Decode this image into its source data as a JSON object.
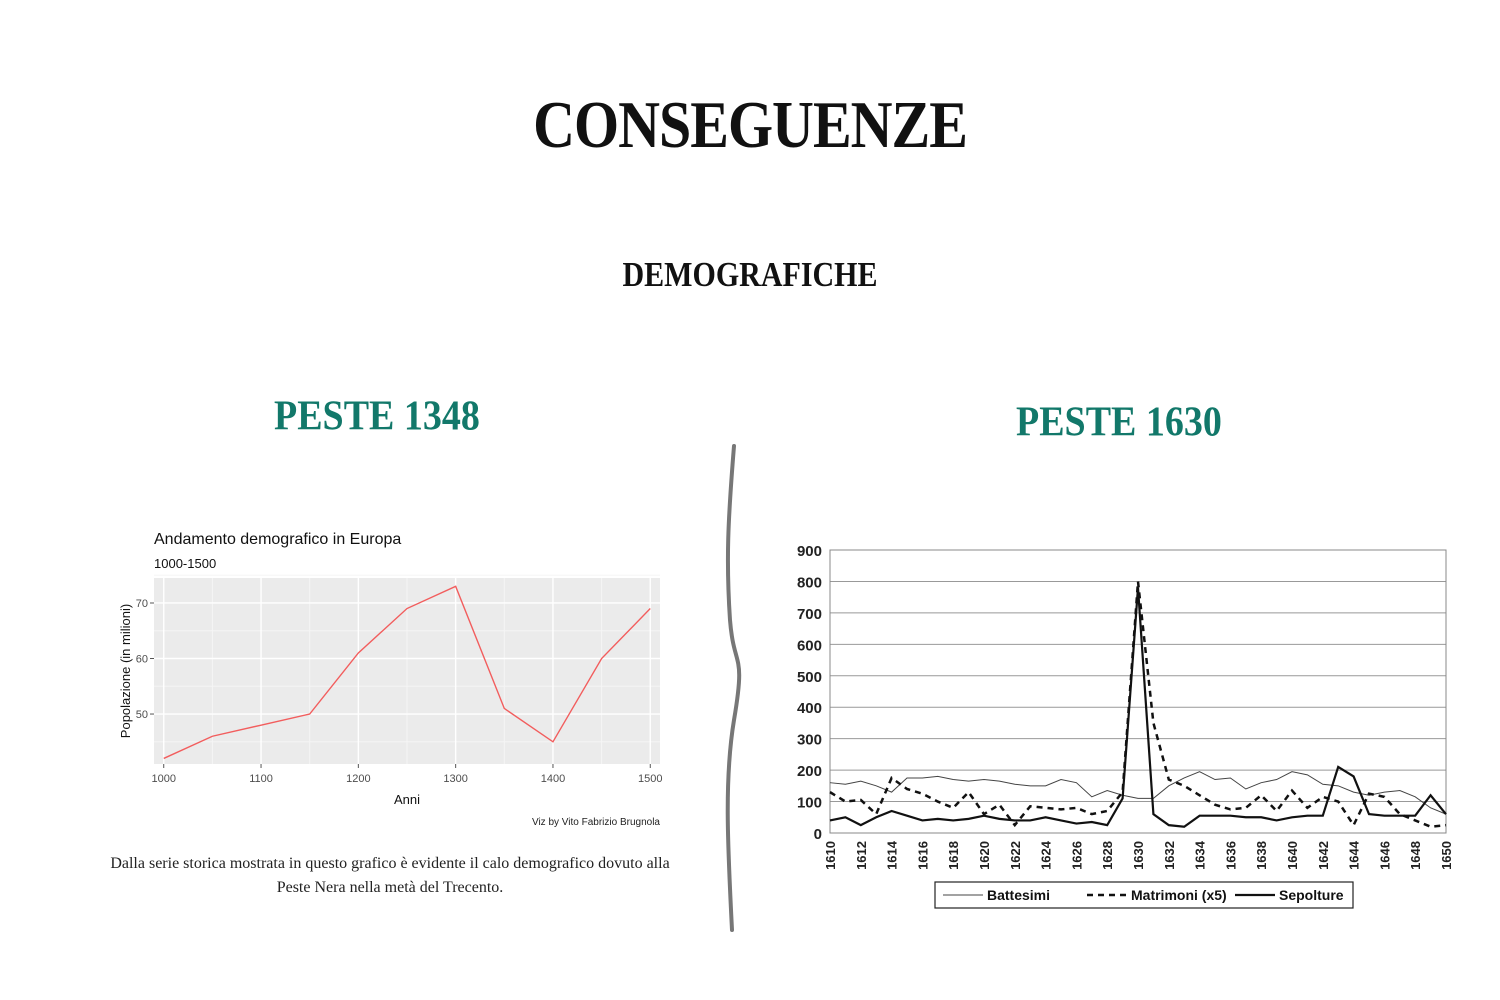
{
  "page": {
    "title": "CONSEGUENZE",
    "subtitle": "DEMOGRAFICHE",
    "left_heading": "PESTE 1348",
    "right_heading": "PESTE 1630",
    "caption": "Dalla serie storica mostrata in questo grafico è evidente il calo demografico dovuto alla Peste Nera nella metà del Trecento."
  },
  "chart_data": [
    {
      "type": "line",
      "title": "Andamento demografico in Europa",
      "subtitle": "1000-1500",
      "xlabel": "Anni",
      "ylabel": "Popolazione (in milioni)",
      "credit": "Viz by Vito Fabrizio Brugnola",
      "x": [
        1000,
        1050,
        1100,
        1150,
        1200,
        1250,
        1300,
        1350,
        1400,
        1450,
        1500
      ],
      "xticks": [
        1000,
        1100,
        1200,
        1300,
        1400,
        1500
      ],
      "yticks": [
        50,
        60,
        70
      ],
      "xlim": [
        990,
        1510
      ],
      "ylim": [
        41,
        74.5
      ],
      "grid": true,
      "line_color": "#f25d5d",
      "panel_color": "#ebebeb",
      "series": [
        {
          "values": [
            42,
            46,
            48,
            50,
            61,
            69,
            73,
            51,
            45,
            60,
            69
          ]
        }
      ]
    },
    {
      "type": "line",
      "x": [
        1610,
        1611,
        1612,
        1613,
        1614,
        1615,
        1616,
        1617,
        1618,
        1619,
        1620,
        1621,
        1622,
        1623,
        1624,
        1625,
        1626,
        1627,
        1628,
        1629,
        1630,
        1631,
        1632,
        1633,
        1634,
        1635,
        1636,
        1637,
        1638,
        1639,
        1640,
        1641,
        1642,
        1643,
        1644,
        1645,
        1646,
        1647,
        1648,
        1649,
        1650
      ],
      "xticks": [
        1610,
        1612,
        1614,
        1616,
        1618,
        1620,
        1622,
        1624,
        1626,
        1628,
        1630,
        1632,
        1634,
        1636,
        1638,
        1640,
        1642,
        1644,
        1646,
        1648,
        1650
      ],
      "yticks": [
        0,
        100,
        200,
        300,
        400,
        500,
        600,
        700,
        800,
        900
      ],
      "xlim": [
        1610,
        1650
      ],
      "ylim": [
        0,
        900
      ],
      "grid": true,
      "legend": "bottom",
      "series": [
        {
          "name": "Battesimi",
          "style": "thin",
          "values": [
            160,
            155,
            165,
            150,
            130,
            175,
            175,
            180,
            170,
            165,
            170,
            165,
            155,
            150,
            150,
            170,
            160,
            115,
            135,
            120,
            110,
            110,
            150,
            175,
            195,
            170,
            175,
            140,
            160,
            170,
            195,
            185,
            155,
            150,
            130,
            120,
            130,
            135,
            115,
            80,
            60
          ]
        },
        {
          "name": "Matrimoni (x5)",
          "style": "dashed",
          "values": [
            130,
            100,
            105,
            60,
            175,
            140,
            125,
            100,
            80,
            130,
            60,
            90,
            25,
            85,
            80,
            75,
            80,
            60,
            70,
            130,
            800,
            350,
            170,
            150,
            120,
            90,
            75,
            80,
            120,
            70,
            135,
            80,
            115,
            100,
            25,
            125,
            115,
            60,
            40,
            20,
            25
          ]
        },
        {
          "name": "Sepolture",
          "style": "thick",
          "values": [
            40,
            50,
            25,
            50,
            70,
            55,
            40,
            45,
            40,
            45,
            55,
            45,
            40,
            40,
            50,
            40,
            30,
            35,
            25,
            110,
            780,
            60,
            25,
            20,
            55,
            55,
            55,
            50,
            50,
            40,
            50,
            55,
            55,
            210,
            180,
            60,
            55,
            55,
            55,
            120,
            60
          ]
        }
      ]
    }
  ]
}
